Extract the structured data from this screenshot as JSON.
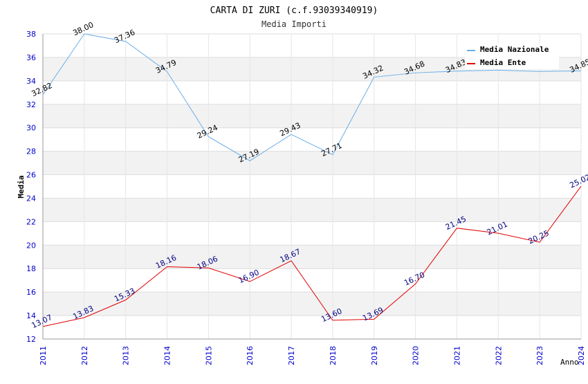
{
  "chart_data": {
    "type": "line",
    "title": "CARTA DI ZURI (c.f.93039340919)",
    "subtitle": "Media Importi",
    "xlabel": "Anno",
    "ylabel": "Media",
    "x": [
      "2011",
      "2012",
      "2013",
      "2014",
      "2015",
      "2016",
      "2017",
      "2018",
      "2019",
      "2020",
      "2021",
      "2022",
      "2023",
      "2024"
    ],
    "ylim": [
      12,
      38
    ],
    "yticks": [
      12,
      14,
      16,
      18,
      20,
      22,
      24,
      26,
      28,
      30,
      32,
      34,
      36,
      38
    ],
    "grid": true,
    "legend_position": "top-right",
    "series": [
      {
        "name": "Media Nazionale",
        "color": "#6aaee8",
        "values": [
          32.82,
          38.0,
          37.36,
          34.79,
          29.24,
          27.19,
          29.43,
          27.71,
          34.32,
          34.68,
          34.83,
          34.91,
          34.8,
          34.85
        ],
        "labels": [
          "32.82",
          "38.00",
          "37.36",
          "34.79",
          "29.24",
          "27.19",
          "29.43",
          "27.71",
          "34.32",
          "34.68",
          "34.83",
          "",
          "",
          "34.85"
        ]
      },
      {
        "name": "Media Ente",
        "color": "#e00000",
        "values": [
          13.07,
          13.83,
          15.33,
          18.16,
          18.06,
          16.9,
          18.67,
          13.6,
          13.69,
          16.7,
          21.45,
          21.01,
          20.25,
          25.02
        ],
        "labels": [
          "13.07",
          "13.83",
          "15.33",
          "18.16",
          "18.06",
          "16.90",
          "18.67",
          "13.60",
          "13.69",
          "16.70",
          "21.45",
          "21.01",
          "20.25",
          "25.02"
        ]
      }
    ]
  }
}
